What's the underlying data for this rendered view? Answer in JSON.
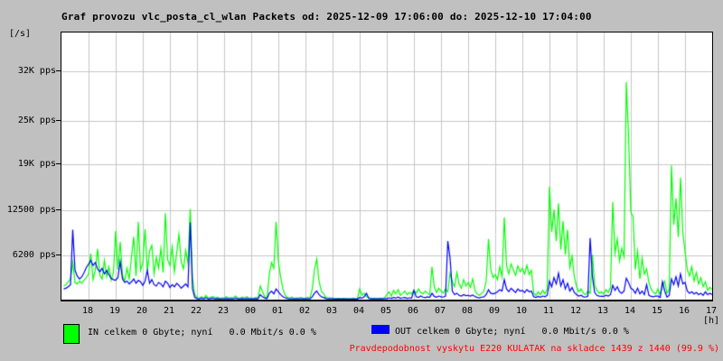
{
  "title": "Graf provozu vlc_posta_cl_wlan Packets od: 2025-12-09 17:06:00 do: 2025-12-10 17:04:00",
  "unit_label": "[/s]",
  "hours_unit_label": "[h]",
  "legend": {
    "in_label": "IN celkem 0 Gbyte; nyní   0.0 Mbit/s 0.0 %",
    "out_label": "OUT celkem 0 Gbyte; nyní   0.0 Mbit/s 0.0 %"
  },
  "note": "Pravdepodobnost vyskytu E220 KULATAK na skladce 1439 z 1440 (99.9 %)",
  "colors": {
    "background": "#c0c0c0",
    "plot_background": "#ffffff",
    "grid": "#c6c6c6",
    "axis": "#000000",
    "in_series": "#00ff00",
    "out_series": "#0000ff",
    "note_text": "#ff0000"
  },
  "chart_data": {
    "type": "line",
    "title": "Graf provozu vlc_posta_cl_wlan Packets",
    "period_from": "2025-12-09 17:06:00",
    "period_to": "2025-12-10 17:04:00",
    "x_start_clock": "17:05",
    "x_step_minutes": 5,
    "x_hours_ticks": [
      "18",
      "19",
      "20",
      "21",
      "22",
      "23",
      "00",
      "01",
      "02",
      "03",
      "04",
      "05",
      "06",
      "07",
      "08",
      "09",
      "10",
      "11",
      "12",
      "13",
      "14",
      "15",
      "16",
      "17"
    ],
    "y_ticks": [
      {
        "label": "32K pps",
        "value": 32000
      },
      {
        "label": "25K pps",
        "value": 25000
      },
      {
        "label": "19K pps",
        "value": 19000
      },
      {
        "label": "12500 pps",
        "value": 12500
      },
      {
        "label": "6200 pps",
        "value": 6200
      }
    ],
    "y_max": 37444,
    "grid": true,
    "legend_position": "bottom",
    "series": [
      {
        "name": "IN",
        "color": "#00ff00",
        "values": [
          1900,
          2100,
          2500,
          2900,
          5200,
          2400,
          2200,
          2600,
          2300,
          2700,
          3100,
          3600,
          6450,
          2800,
          4200,
          7100,
          3400,
          2900,
          5500,
          3200,
          4600,
          2700,
          3800,
          9600,
          4200,
          8100,
          3500,
          2600,
          4400,
          2900,
          6000,
          8800,
          3300,
          10900,
          4100,
          5200,
          9900,
          4000,
          6800,
          7600,
          3600,
          5900,
          4400,
          7200,
          3800,
          12100,
          5600,
          4800,
          7400,
          3900,
          6600,
          9150,
          5300,
          4300,
          6900,
          5100,
          12700,
          3000,
          700,
          300,
          150,
          400,
          200,
          600,
          150,
          300,
          450,
          200,
          350,
          150,
          250,
          200,
          400,
          150,
          300,
          200,
          500,
          250,
          150,
          350,
          200,
          400,
          180,
          250,
          150,
          300,
          200,
          1900,
          1100,
          400,
          250,
          3600,
          5200,
          4400,
          10900,
          5400,
          3200,
          1500,
          600,
          300,
          200,
          350,
          150,
          250,
          200,
          300,
          180,
          200,
          300,
          250,
          1500,
          4200,
          5700,
          2600,
          1200,
          850,
          300,
          200,
          250,
          200,
          150,
          120,
          180,
          150,
          130,
          160,
          140,
          120,
          150,
          130,
          160,
          1500,
          600,
          900,
          400,
          300,
          150,
          200,
          180,
          150,
          200,
          180,
          250,
          700,
          1100,
          500,
          1300,
          800,
          1400,
          600,
          900,
          1200,
          700,
          1000,
          800,
          1300,
          900,
          1500,
          1000,
          800,
          1200,
          900,
          700,
          4600,
          1800,
          1000,
          1600,
          1200,
          900,
          1500,
          1100,
          3700,
          2500,
          1800,
          3800,
          2200,
          1600,
          2800,
          1900,
          2400,
          1700,
          2900,
          1300,
          800,
          600,
          900,
          1200,
          2600,
          8500,
          4200,
          3100,
          3500,
          2800,
          4600,
          3200,
          11500,
          4800,
          3600,
          5000,
          4200,
          3400,
          4700,
          3900,
          4400,
          3600,
          4800,
          3500,
          4100,
          900,
          600,
          1100,
          700,
          1300,
          800,
          1500,
          15800,
          9500,
          12600,
          8200,
          13500,
          7000,
          11000,
          6300,
          9800,
          4500,
          6100,
          3200,
          1800,
          1100,
          1500,
          900,
          700,
          1200,
          900,
          6300,
          2100,
          1300,
          900,
          1100,
          800,
          1400,
          1000,
          1700,
          13700,
          6500,
          8500,
          5400,
          7200,
          6000,
          30500,
          23000,
          12300,
          11600,
          4200,
          6800,
          2900,
          5800,
          3600,
          4300,
          2400,
          1500,
          1000,
          800,
          1500,
          700,
          1900,
          2600,
          900,
          1400,
          18800,
          10500,
          14200,
          8800,
          17100,
          9500,
          6700,
          4200,
          3300,
          4600,
          2600,
          3800,
          2200,
          3100,
          1800,
          2500,
          1300,
          1700,
          1500
        ]
      },
      {
        "name": "OUT",
        "color": "#0000ff",
        "values": [
          1500,
          1600,
          1800,
          2100,
          9800,
          4100,
          3300,
          2900,
          3200,
          3800,
          4500,
          5000,
          5500,
          4800,
          5200,
          4300,
          3900,
          4400,
          3600,
          4100,
          3500,
          3000,
          2800,
          2700,
          3100,
          5350,
          2900,
          2400,
          2600,
          2200,
          2500,
          2900,
          2300,
          2700,
          2500,
          2000,
          2600,
          4100,
          2300,
          2800,
          2100,
          1900,
          2400,
          2200,
          1800,
          2600,
          2300,
          1700,
          2100,
          1800,
          2300,
          2000,
          1600,
          1900,
          2200,
          1800,
          10800,
          1500,
          300,
          150,
          100,
          200,
          100,
          250,
          100,
          150,
          200,
          100,
          150,
          100,
          120,
          100,
          150,
          100,
          120,
          100,
          200,
          120,
          100,
          150,
          100,
          130,
          100,
          120,
          100,
          150,
          100,
          700,
          400,
          200,
          150,
          900,
          1200,
          800,
          1500,
          1100,
          700,
          400,
          250,
          150,
          100,
          120,
          100,
          100,
          100,
          120,
          100,
          100,
          120,
          100,
          400,
          900,
          1200,
          700,
          400,
          300,
          150,
          100,
          100,
          100,
          80,
          100,
          90,
          80,
          100,
          90,
          80,
          90,
          100,
          80,
          90,
          300,
          200,
          400,
          880,
          150,
          100,
          120,
          100,
          100,
          120,
          100,
          150,
          150,
          250,
          180,
          300,
          200,
          350,
          180,
          250,
          300,
          180,
          250,
          200,
          1300,
          400,
          300,
          500,
          350,
          280,
          400,
          300,
          900,
          450,
          350,
          500,
          400,
          350,
          500,
          8200,
          5800,
          1200,
          700,
          900,
          600,
          500,
          700,
          550,
          600,
          500,
          650,
          450,
          300,
          250,
          350,
          400,
          700,
          1400,
          900,
          800,
          900,
          1100,
          1400,
          1200,
          2800,
          1500,
          1100,
          1600,
          1300,
          1000,
          1500,
          1200,
          1300,
          1000,
          1400,
          1100,
          1200,
          400,
          300,
          450,
          350,
          500,
          400,
          600,
          2600,
          1800,
          3100,
          2200,
          3700,
          1900,
          2800,
          1500,
          2300,
          1200,
          1700,
          1000,
          700,
          500,
          600,
          400,
          350,
          500,
          8640,
          3200,
          1000,
          600,
          500,
          450,
          450,
          600,
          500,
          700,
          2000,
          1300,
          1800,
          1100,
          900,
          1200,
          3000,
          2400,
          1600,
          1400,
          900,
          1600,
          800,
          1200,
          700,
          2100,
          600,
          450,
          400,
          500,
          500,
          300,
          2500,
          1200,
          350,
          600,
          2900,
          2100,
          3200,
          1900,
          3600,
          2200,
          2400,
          1200,
          900,
          1100,
          800,
          1000,
          700,
          900,
          600,
          1100,
          700,
          900,
          700
        ]
      }
    ]
  }
}
